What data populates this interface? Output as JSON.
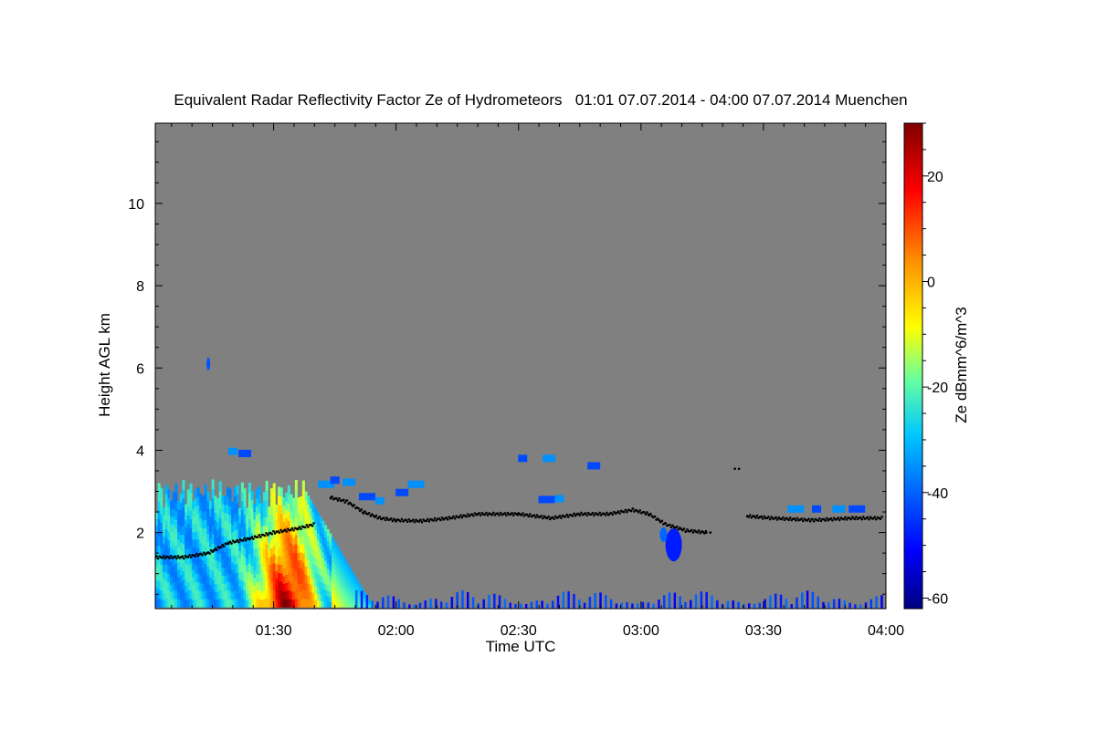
{
  "chart_data": {
    "type": "heatmap",
    "title": "Equivalent Radar Reflectivity Factor Ze of Hydrometeors   01:01 07.07.2014 - 04:00 07.07.2014 Muenchen",
    "xlabel": "Time UTC",
    "ylabel": "Height AGL km",
    "colorbar_label": "Ze dBmm^6/m^3",
    "x_ticks": [
      "01:30",
      "02:00",
      "02:30",
      "03:00",
      "03:30",
      "04:00"
    ],
    "x_tick_values_min": [
      90,
      120,
      150,
      180,
      210,
      240
    ],
    "xlim_min": [
      61,
      240
    ],
    "y_ticks": [
      2,
      4,
      6,
      8,
      10
    ],
    "ylim": [
      0.15,
      11.95
    ],
    "colorbar_ticks": [
      20,
      0,
      -20,
      -40,
      -60
    ],
    "colorbar_range": [
      -62,
      30
    ],
    "background_color": "#808080",
    "features": [
      {
        "label": "convective cell",
        "t_start_min": 61,
        "t_end_min": 114,
        "h_min_km": 0.2,
        "h_max_km": 3.3,
        "ze_min": -38,
        "ze_max": 25
      },
      {
        "label": "isolated echo",
        "t_min": 74,
        "h_km": 6.1,
        "ze": -42
      },
      {
        "label": "elevated echoes",
        "t_start_min": 112,
        "t_end_min": 232,
        "h_min_km": 2.3,
        "h_max_km": 3.9,
        "ze": -35
      },
      {
        "label": "virga",
        "t_start_min": 185,
        "t_end_min": 190,
        "h_min_km": 1.3,
        "h_max_km": 2.1,
        "ze": -45
      },
      {
        "label": "near-ground clutter",
        "t_start_min": 110,
        "t_end_min": 240,
        "h_min_km": 0.15,
        "h_max_km": 0.7,
        "ze": -45
      }
    ],
    "cloud_base_km": [
      [
        61,
        1.4
      ],
      [
        68,
        1.4
      ],
      [
        74,
        1.5
      ],
      [
        79,
        1.75
      ],
      [
        84,
        1.85
      ],
      [
        90,
        2.0
      ],
      [
        96,
        2.1
      ],
      [
        100,
        2.2
      ],
      [
        104,
        2.85
      ],
      [
        108,
        2.75
      ],
      [
        112,
        2.5
      ],
      [
        116,
        2.35
      ],
      [
        120,
        2.3
      ],
      [
        126,
        2.28
      ],
      [
        133,
        2.35
      ],
      [
        140,
        2.45
      ],
      [
        150,
        2.45
      ],
      [
        158,
        2.35
      ],
      [
        165,
        2.45
      ],
      [
        172,
        2.45
      ],
      [
        178,
        2.55
      ],
      [
        182,
        2.45
      ],
      [
        186,
        2.2
      ],
      [
        191,
        2.05
      ],
      [
        196,
        2.0
      ],
      [
        203,
        3.55
      ],
      [
        206,
        2.4
      ],
      [
        212,
        2.35
      ],
      [
        222,
        2.3
      ],
      [
        232,
        2.35
      ],
      [
        239,
        2.35
      ]
    ]
  }
}
